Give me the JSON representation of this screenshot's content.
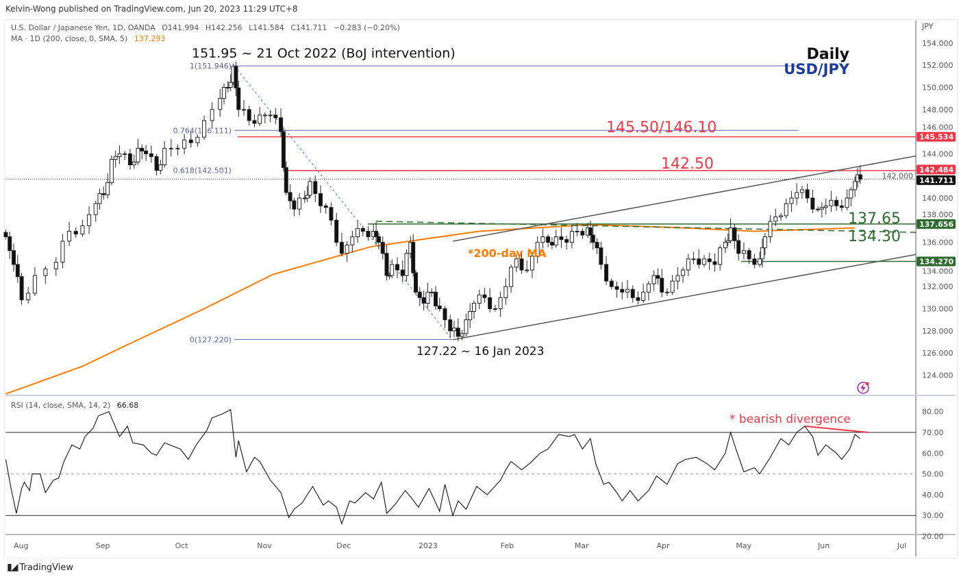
{
  "header": {
    "published": "Kelvin-Wong published on TradingView.com, Jun 20, 2023 11:29 UTC+8",
    "symbol": "U.S. Dollar / Japanese Yen, 1D, OANDA",
    "open": "O141.994",
    "high": "H142.256",
    "low": "L141.584",
    "close": "C141.711",
    "change": "−0.283 (−0.20%)",
    "ma_label": "MA · 1D (200, close, 0, SMA, 5)",
    "ma_value": "137.293",
    "rsi_label": "RSI (14, close, SMA, 14, 2)",
    "rsi_value": "66.68"
  },
  "footer": {
    "brand": "TradingView",
    "logo": "TV"
  },
  "colors": {
    "red": "#f23645",
    "green": "#2e6b2e",
    "fib": "#5d5fb0",
    "ma": "#ff7a00",
    "title_blue": "#1c3c9c"
  },
  "chart_data": [
    {
      "type": "candlestick",
      "title": "Daily",
      "subtitle": "USD/JPY",
      "x_unit": "days since 1 Aug 2022",
      "currency_label": "JPY",
      "ylim": [
        122,
        156
      ],
      "y_ticks": [
        "154.000",
        "152.000",
        "150.000",
        "148.000",
        "146.000",
        "144.000",
        "142.000",
        "140.000",
        "138.000",
        "136.000",
        "134.000",
        "132.000",
        "130.000",
        "128.000",
        "126.000",
        "124.000"
      ],
      "x_ticks": [
        {
          "label": "Aug",
          "day": 0
        },
        {
          "label": "Sep",
          "day": 31
        },
        {
          "label": "Oct",
          "day": 61
        },
        {
          "label": "Nov",
          "day": 92
        },
        {
          "label": "Dec",
          "day": 122
        },
        {
          "label": "2023",
          "day": 153
        },
        {
          "label": "Feb",
          "day": 184
        },
        {
          "label": "Mar",
          "day": 212
        },
        {
          "label": "Apr",
          "day": 243
        },
        {
          "label": "May",
          "day": 273
        },
        {
          "label": "Jun",
          "day": 304
        },
        {
          "label": "Jul",
          "day": 334
        }
      ],
      "closes": [
        [
          -3,
          136.5
        ],
        [
          0,
          134
        ],
        [
          3,
          130.8
        ],
        [
          8,
          133
        ],
        [
          16,
          134.2
        ],
        [
          21,
          137
        ],
        [
          26,
          137.5
        ],
        [
          31,
          139.5
        ],
        [
          34,
          140.3
        ],
        [
          37,
          143.5
        ],
        [
          40,
          144
        ],
        [
          44,
          143
        ],
        [
          47,
          144.5
        ],
        [
          50,
          144
        ],
        [
          54,
          142.5
        ],
        [
          57,
          144.5
        ],
        [
          62,
          144.5
        ],
        [
          67,
          145
        ],
        [
          72,
          147
        ],
        [
          78,
          149
        ],
        [
          81,
          150
        ],
        [
          83,
          151.9
        ],
        [
          85,
          148
        ],
        [
          89,
          147
        ],
        [
          93,
          147.5
        ],
        [
          97,
          147.5
        ],
        [
          101,
          146
        ],
        [
          103,
          140.5
        ],
        [
          106,
          139
        ],
        [
          110,
          140
        ],
        [
          112,
          141.5
        ],
        [
          116,
          139.3
        ],
        [
          120,
          138
        ],
        [
          124,
          135
        ],
        [
          128,
          136.5
        ],
        [
          132,
          137
        ],
        [
          136,
          137
        ],
        [
          138,
          136
        ],
        [
          141,
          133
        ],
        [
          143,
          134
        ],
        [
          147,
          133
        ],
        [
          150,
          136
        ],
        [
          152,
          131.5
        ],
        [
          155,
          130.5
        ],
        [
          158,
          131.5
        ],
        [
          161,
          130
        ],
        [
          165,
          128
        ],
        [
          168,
          127.5
        ],
        [
          171,
          129
        ],
        [
          174,
          130.5
        ],
        [
          178,
          131
        ],
        [
          182,
          130
        ],
        [
          186,
          132
        ],
        [
          190,
          134.5
        ],
        [
          194,
          133.5
        ],
        [
          198,
          136
        ],
        [
          202,
          136
        ],
        [
          205,
          136.5
        ],
        [
          209,
          136
        ],
        [
          213,
          137
        ],
        [
          217,
          137.3
        ],
        [
          219,
          136
        ],
        [
          222,
          134
        ],
        [
          226,
          132
        ],
        [
          230,
          131.5
        ],
        [
          234,
          131
        ],
        [
          238,
          131.5
        ],
        [
          242,
          133
        ],
        [
          245,
          131.5
        ],
        [
          249,
          132.5
        ],
        [
          253,
          133.5
        ],
        [
          257,
          134.5
        ],
        [
          261,
          134.5
        ],
        [
          265,
          134
        ],
        [
          269,
          136
        ],
        [
          271,
          137.3
        ],
        [
          274,
          135
        ],
        [
          278,
          134.5
        ],
        [
          282,
          134.5
        ],
        [
          284,
          136.5
        ],
        [
          288,
          138.3
        ],
        [
          292,
          139.5
        ],
        [
          296,
          140.5
        ],
        [
          300,
          140
        ],
        [
          304,
          139
        ],
        [
          307,
          139.3
        ],
        [
          311,
          139.3
        ],
        [
          315,
          140
        ],
        [
          318,
          141.5
        ],
        [
          320,
          141.711
        ]
      ],
      "ma200": [
        [
          -3,
          122.3
        ],
        [
          26,
          124.8
        ],
        [
          47,
          127.2
        ],
        [
          72,
          130
        ],
        [
          98,
          133.1
        ],
        [
          135,
          135.6
        ],
        [
          176,
          137
        ],
        [
          218,
          137.6
        ],
        [
          254,
          137.3
        ],
        [
          280,
          137
        ],
        [
          318,
          137.3
        ]
      ],
      "fibonacci": [
        {
          "label": "1(151.946)",
          "price": 151.946
        },
        {
          "label": "0.764(146.111)",
          "price": 146.111
        },
        {
          "label": "0.618(142.501)",
          "price": 142.501
        },
        {
          "label": "0(127.220)",
          "price": 127.22
        }
      ],
      "levels": [
        {
          "label": "145.50/146.10",
          "price": 145.534,
          "badge": "145.534",
          "color": "red"
        },
        {
          "label": "142.50",
          "price": 142.484,
          "badge": "142.484",
          "color": "red"
        },
        {
          "label": "137.65",
          "price": 137.656,
          "badge": "137.656",
          "color": "green"
        },
        {
          "label": "134.30",
          "price": 134.27,
          "badge": "134.270",
          "color": "green"
        }
      ],
      "last_price": "141.711",
      "annotations": {
        "high": "151.95 ~ 21 Oct 2022 (BoJ intervention)",
        "low": "127.22 ~ 16 Jan 2023",
        "ma": "*200-day MA"
      },
      "channel": {
        "upper": [
          [
            166,
            136.1
          ],
          [
            341,
            143.8
          ]
        ],
        "lower": [
          [
            166,
            127.2
          ],
          [
            341,
            134.9
          ]
        ]
      },
      "neckline_dashed": [
        [
          137,
          137.9
        ],
        [
          341,
          136.9
        ]
      ]
    },
    {
      "type": "line",
      "title": "RSI (14, close, SMA, 14, 2)",
      "ylim": [
        18,
        86
      ],
      "y_ticks": [
        "80.00",
        "70.00",
        "60.00",
        "50.00",
        "40.00",
        "30.00",
        "20.00"
      ],
      "bands": {
        "upper": 70,
        "middle": 50,
        "lower": 30
      },
      "annotation": "* bearish divergence",
      "divergence_line": [
        [
          299,
          73
        ],
        [
          323,
          70
        ]
      ],
      "values": [
        [
          -3,
          57
        ],
        [
          -1,
          43
        ],
        [
          1,
          31
        ],
        [
          3,
          43
        ],
        [
          4,
          46
        ],
        [
          6,
          42
        ],
        [
          7,
          50
        ],
        [
          10,
          50
        ],
        [
          12,
          41
        ],
        [
          13,
          43
        ],
        [
          15,
          47
        ],
        [
          17,
          48
        ],
        [
          19,
          56
        ],
        [
          22,
          64
        ],
        [
          25,
          62
        ],
        [
          27,
          68
        ],
        [
          30,
          72
        ],
        [
          32,
          78
        ],
        [
          36,
          80
        ],
        [
          40,
          68
        ],
        [
          43,
          73
        ],
        [
          45,
          65
        ],
        [
          49,
          64
        ],
        [
          52,
          60
        ],
        [
          54,
          59
        ],
        [
          57,
          65
        ],
        [
          61,
          63
        ],
        [
          63,
          62
        ],
        [
          66,
          57
        ],
        [
          69,
          64
        ],
        [
          73,
          71
        ],
        [
          75,
          77
        ],
        [
          79,
          79
        ],
        [
          82,
          81
        ],
        [
          84,
          58
        ],
        [
          85,
          66
        ],
        [
          88,
          51
        ],
        [
          91,
          58
        ],
        [
          93,
          56
        ],
        [
          97,
          47
        ],
        [
          101,
          41
        ],
        [
          104,
          29
        ],
        [
          106,
          33
        ],
        [
          109,
          36
        ],
        [
          113,
          44
        ],
        [
          117,
          35
        ],
        [
          119,
          37
        ],
        [
          122,
          34
        ],
        [
          124,
          26
        ],
        [
          127,
          37
        ],
        [
          129,
          36
        ],
        [
          133,
          41
        ],
        [
          136,
          38
        ],
        [
          139,
          46
        ],
        [
          141,
          31
        ],
        [
          144,
          35
        ],
        [
          148,
          42
        ],
        [
          150,
          39
        ],
        [
          153,
          34
        ],
        [
          157,
          43
        ],
        [
          161,
          32
        ],
        [
          163,
          45
        ],
        [
          166,
          30
        ],
        [
          168,
          37
        ],
        [
          171,
          33
        ],
        [
          175,
          44
        ],
        [
          179,
          40
        ],
        [
          184,
          47
        ],
        [
          186,
          52
        ],
        [
          188,
          56
        ],
        [
          192,
          52
        ],
        [
          195,
          55
        ],
        [
          199,
          60
        ],
        [
          202,
          62
        ],
        [
          206,
          69
        ],
        [
          210,
          68
        ],
        [
          212,
          69
        ],
        [
          215,
          62
        ],
        [
          218,
          67
        ],
        [
          220,
          55
        ],
        [
          223,
          45
        ],
        [
          225,
          46
        ],
        [
          228,
          41
        ],
        [
          230,
          37
        ],
        [
          233,
          42
        ],
        [
          236,
          37
        ],
        [
          240,
          42
        ],
        [
          243,
          49
        ],
        [
          247,
          45
        ],
        [
          251,
          55
        ],
        [
          254,
          57
        ],
        [
          258,
          58
        ],
        [
          262,
          55
        ],
        [
          265,
          52
        ],
        [
          269,
          60
        ],
        [
          271,
          70
        ],
        [
          273,
          62
        ],
        [
          276,
          51
        ],
        [
          280,
          53
        ],
        [
          282,
          50
        ],
        [
          286,
          58
        ],
        [
          290,
          67
        ],
        [
          293,
          64
        ],
        [
          296,
          70
        ],
        [
          299,
          73
        ],
        [
          302,
          68
        ],
        [
          304,
          59
        ],
        [
          307,
          64
        ],
        [
          311,
          60
        ],
        [
          313,
          57
        ],
        [
          316,
          62
        ],
        [
          318,
          69
        ],
        [
          320,
          67
        ]
      ]
    }
  ]
}
